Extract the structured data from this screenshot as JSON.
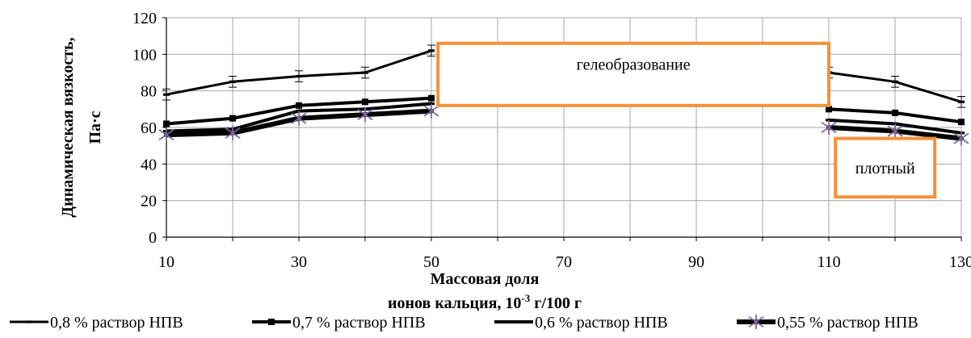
{
  "chart_data": {
    "type": "line",
    "xlabel_line1": "Массовая доля",
    "xlabel_line2_main": "ионов кальция, 10",
    "xlabel_line2_sup": "-3",
    "xlabel_line2_tail": " г/100 г",
    "ylabel_line1": "Динамическая вязкость,",
    "ylabel_line2": "Па·с",
    "xlim": [
      10,
      130
    ],
    "ylim": [
      0,
      120
    ],
    "x_ticks": [
      10,
      30,
      50,
      70,
      90,
      110,
      130
    ],
    "y_ticks": [
      0,
      20,
      40,
      60,
      80,
      100,
      120
    ],
    "grid": true,
    "legend_position": "bottom",
    "series": [
      {
        "name": "0,8 % раствор НПВ",
        "marker": "dash",
        "stroke": 3,
        "color": "#000000",
        "segments": [
          [
            [
              10,
              78
            ],
            [
              20,
              85
            ],
            [
              30,
              88
            ],
            [
              40,
              90
            ],
            [
              50,
              102
            ]
          ],
          [
            [
              110,
              90
            ],
            [
              120,
              85
            ],
            [
              130,
              74
            ]
          ]
        ],
        "error": 3
      },
      {
        "name": "0,7 % раствор НПВ",
        "marker": "square",
        "stroke": 4,
        "color": "#000000",
        "segments": [
          [
            [
              10,
              62
            ],
            [
              20,
              65
            ],
            [
              30,
              72
            ],
            [
              40,
              74
            ],
            [
              50,
              76
            ]
          ],
          [
            [
              110,
              70
            ],
            [
              120,
              68
            ],
            [
              130,
              63
            ]
          ]
        ],
        "error": 0
      },
      {
        "name": "0,6 % раствор НПВ",
        "marker": "dash",
        "stroke": 4,
        "color": "#000000",
        "segments": [
          [
            [
              10,
              58
            ],
            [
              20,
              59
            ],
            [
              30,
              69
            ],
            [
              40,
              70
            ],
            [
              50,
              73
            ]
          ],
          [
            [
              110,
              64
            ],
            [
              120,
              62
            ],
            [
              130,
              57
            ]
          ]
        ],
        "error": 0
      },
      {
        "name": "0,55 % раствор НПВ",
        "marker": "star",
        "stroke": 6,
        "color": "#000000",
        "marker_color": "#7a6a9a",
        "segments": [
          [
            [
              10,
              56
            ],
            [
              20,
              57
            ],
            [
              30,
              65
            ],
            [
              40,
              67
            ],
            [
              50,
              69
            ]
          ],
          [
            [
              110,
              60
            ],
            [
              120,
              58
            ],
            [
              130,
              54
            ]
          ]
        ],
        "error": 0
      }
    ],
    "annotations": [
      {
        "text": "гелеобразование",
        "x0": 51,
        "x1": 110,
        "y0": 72,
        "y1": 106,
        "color": "#f4913a"
      },
      {
        "text": "плотный",
        "x0": 111,
        "x1": 126,
        "y0": 22,
        "y1": 54,
        "color": "#f4913a"
      }
    ]
  }
}
